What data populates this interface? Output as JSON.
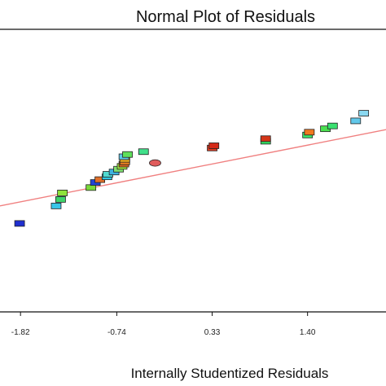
{
  "chart_data": {
    "type": "scatter",
    "title": "Normal Plot of Residuals",
    "xlabel": "Internally Studentized Residuals",
    "ylabel": "",
    "xlim": [
      -2.05,
      2.28
    ],
    "x_ticks": [
      -1.82,
      -0.74,
      0.33,
      1.4
    ],
    "x_tick_labels": [
      "-1.82",
      "-0.74",
      "0.33",
      "1.40"
    ],
    "grid": false,
    "legend": "none",
    "reference_line": {
      "color": "#f08080",
      "x": [
        -2.05,
        2.28
      ],
      "y": [
        0.375,
        0.645
      ]
    },
    "ylim": [
      0,
      1
    ],
    "points": [
      {
        "x": -1.83,
        "y": 0.313,
        "color": "#1f2fd0"
      },
      {
        "x": -1.42,
        "y": 0.375,
        "color": "#39c6e8"
      },
      {
        "x": -1.37,
        "y": 0.398,
        "color": "#3fd36a"
      },
      {
        "x": -1.35,
        "y": 0.421,
        "color": "#8fe33a"
      },
      {
        "x": -1.03,
        "y": 0.44,
        "color": "#7ad93a"
      },
      {
        "x": -0.98,
        "y": 0.458,
        "color": "#2244d6"
      },
      {
        "x": -0.93,
        "y": 0.468,
        "color": "#e0702a"
      },
      {
        "x": -0.85,
        "y": 0.478,
        "color": "#2fc9e8"
      },
      {
        "x": -0.84,
        "y": 0.487,
        "color": "#4fd9d0"
      },
      {
        "x": -0.77,
        "y": 0.495,
        "color": "#3fb4e0"
      },
      {
        "x": -0.72,
        "y": 0.505,
        "color": "#7fe070"
      },
      {
        "x": -0.68,
        "y": 0.515,
        "color": "#a4e842"
      },
      {
        "x": -0.66,
        "y": 0.523,
        "color": "#e06a20"
      },
      {
        "x": -0.65,
        "y": 0.531,
        "color": "#e9801f"
      },
      {
        "x": -0.65,
        "y": 0.54,
        "color": "#f0b020"
      },
      {
        "x": -0.66,
        "y": 0.549,
        "color": "#5dc7e9"
      },
      {
        "x": -0.62,
        "y": 0.557,
        "color": "#5fe05a"
      },
      {
        "x": -0.44,
        "y": 0.567,
        "color": "#41e08a"
      },
      {
        "x": -0.31,
        "y": 0.527,
        "color": "#e05c5c"
      },
      {
        "x": 0.33,
        "y": 0.58,
        "color": "#e03a20"
      },
      {
        "x": 0.35,
        "y": 0.588,
        "color": "#d42a18"
      },
      {
        "x": 0.93,
        "y": 0.604,
        "color": "#32e060"
      },
      {
        "x": 0.93,
        "y": 0.613,
        "color": "#d43618"
      },
      {
        "x": 1.4,
        "y": 0.626,
        "color": "#3ae86a"
      },
      {
        "x": 1.42,
        "y": 0.636,
        "color": "#f07820"
      },
      {
        "x": 1.6,
        "y": 0.648,
        "color": "#4ae050"
      },
      {
        "x": 1.68,
        "y": 0.658,
        "color": "#3ae070"
      },
      {
        "x": 1.94,
        "y": 0.676,
        "color": "#62c8ea"
      },
      {
        "x": 2.03,
        "y": 0.703,
        "color": "#8ad8f0"
      }
    ]
  }
}
